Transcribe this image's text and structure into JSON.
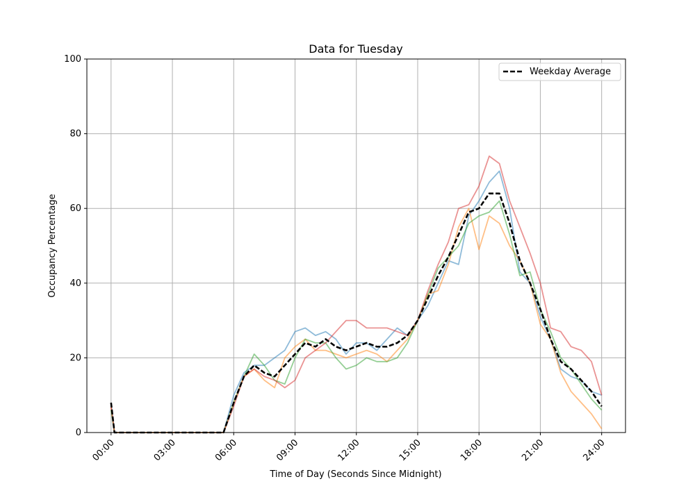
{
  "chart_data": {
    "type": "line",
    "title": "Data for Tuesday",
    "xlabel": "Time of Day (Seconds Since Midnight)",
    "ylabel": "Occupancy Percentage",
    "ylim": [
      0,
      100
    ],
    "xlim": [
      "-01:11",
      "25:10"
    ],
    "grid": true,
    "legend_placement": "top-right",
    "xticks": [
      "00:00",
      "03:00",
      "06:00",
      "09:00",
      "12:00",
      "15:00",
      "18:00",
      "21:00",
      "24:00"
    ],
    "yticks": [
      0,
      20,
      40,
      60,
      80,
      100
    ],
    "x": [
      "00:00",
      "00:10",
      "05:30",
      "06:00",
      "06:30",
      "07:00",
      "07:30",
      "08:00",
      "08:30",
      "09:00",
      "09:30",
      "10:00",
      "10:30",
      "11:00",
      "11:30",
      "12:00",
      "12:30",
      "13:00",
      "13:30",
      "14:00",
      "14:30",
      "15:00",
      "15:30",
      "16:00",
      "16:30",
      "17:00",
      "17:30",
      "18:00",
      "18:30",
      "19:00",
      "19:30",
      "20:00",
      "20:30",
      "21:00",
      "21:30",
      "22:00",
      "22:30",
      "23:00",
      "23:30",
      "24:00"
    ],
    "series": [
      {
        "color": "#1f77b4",
        "style": "solid",
        "values": [
          8,
          0,
          0,
          10,
          16,
          18,
          18,
          20,
          22,
          27,
          28,
          26,
          27,
          25,
          21,
          24,
          24,
          22,
          25,
          28,
          26,
          30,
          34,
          40,
          46,
          45,
          58,
          62,
          67,
          70,
          60,
          43,
          40,
          31,
          25,
          17,
          15,
          14,
          11,
          10
        ]
      },
      {
        "color": "#ff7f0e",
        "style": "solid",
        "values": [
          7,
          0,
          0,
          8,
          15,
          17,
          14,
          12,
          20,
          23,
          25,
          22,
          22,
          21,
          20,
          21,
          22,
          21,
          19,
          22,
          25,
          30,
          37,
          38,
          45,
          55,
          60,
          49,
          58,
          56,
          50,
          46,
          40,
          29,
          25,
          16,
          11,
          8,
          5,
          1
        ]
      },
      {
        "color": "#2ca02c",
        "style": "solid",
        "values": [
          6,
          0,
          0,
          8,
          15,
          21,
          18,
          14,
          13,
          20,
          25,
          24,
          24,
          20,
          17,
          18,
          20,
          19,
          19,
          20,
          24,
          30,
          37,
          44,
          47,
          50,
          56,
          58,
          59,
          62,
          53,
          42,
          43,
          33,
          27,
          20,
          17,
          13,
          9,
          6
        ]
      },
      {
        "color": "#d62728",
        "style": "solid",
        "values": [
          7,
          0,
          0,
          7,
          15,
          17,
          15,
          14,
          12,
          14,
          20,
          22,
          24,
          27,
          30,
          30,
          28,
          28,
          28,
          27,
          26,
          30,
          38,
          45,
          51,
          60,
          61,
          66,
          74,
          72,
          62,
          55,
          48,
          40,
          28,
          27,
          23,
          22,
          19,
          10
        ]
      },
      {
        "name": "Weekday Average",
        "color": "#000000",
        "style": "dashed",
        "values": [
          8,
          0,
          0,
          8,
          15,
          18,
          16,
          15,
          18,
          21,
          24,
          23,
          25,
          23,
          22,
          23,
          24,
          23,
          23,
          24,
          26,
          30,
          36,
          42,
          47,
          53,
          59,
          60,
          64,
          64,
          56,
          46,
          40,
          33,
          25,
          19,
          17,
          14,
          11,
          7
        ]
      }
    ]
  }
}
